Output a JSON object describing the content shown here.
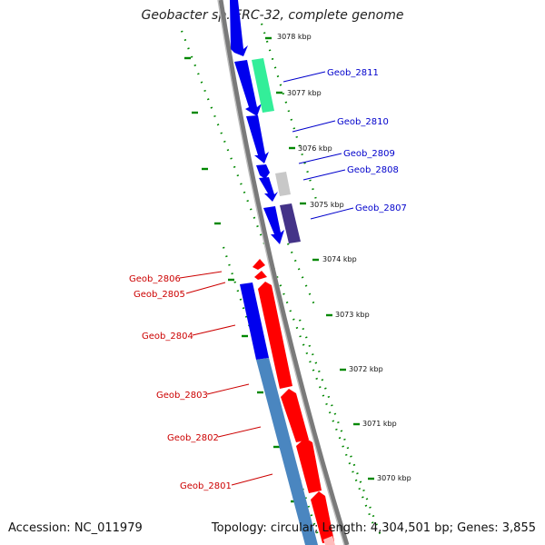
{
  "title": "Geobacter sp. FRC-32, complete genome",
  "accession": "Accession: NC_011979",
  "summary": "Topology: circular; Length: 4,304,501 bp; Genes: 3,855",
  "colors": {
    "backbone": "#888888",
    "forward_gene": "#0000ee",
    "reverse_gene": "#ff0000",
    "forward_label": "#0000cc",
    "reverse_label": "#cc0000",
    "tick": "#008800",
    "rna_teal": "#33ee99",
    "pseudo_gray": "#c8c8c8",
    "purple": "#443388",
    "steelblue": "#4a86c0"
  },
  "kbp_ticks": [
    "3078 kbp",
    "3077 kbp",
    "3076 kbp",
    "3075 kbp",
    "3074 kbp",
    "3073 kbp",
    "3072 kbp",
    "3071 kbp",
    "3070 kbp"
  ],
  "gene_labels": {
    "forward": [
      "Geob_2811",
      "Geob_2810",
      "Geob_2809",
      "Geob_2808",
      "Geob_2807"
    ],
    "reverse": [
      "Geob_2806",
      "Geob_2805",
      "Geob_2804",
      "Geob_2803",
      "Geob_2802",
      "Geob_2801"
    ]
  }
}
